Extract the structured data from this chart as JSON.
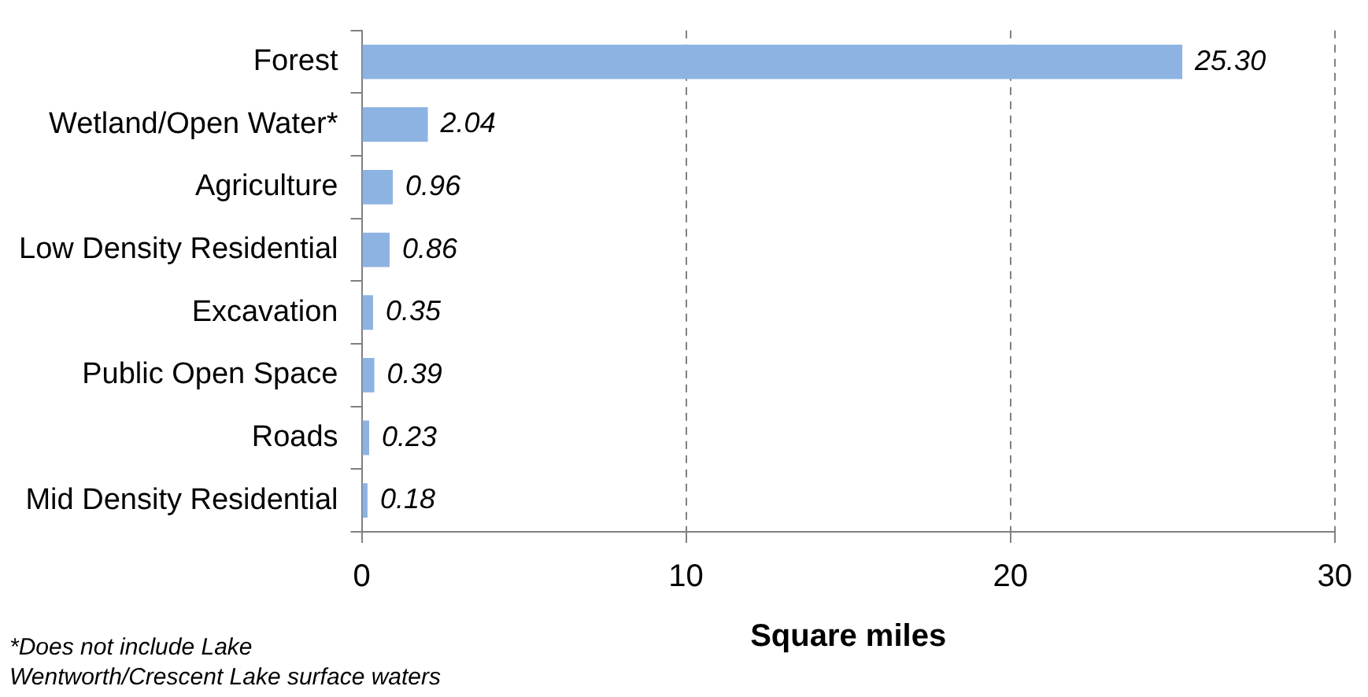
{
  "chart_data": {
    "type": "bar",
    "orientation": "horizontal",
    "categories": [
      "Forest",
      "Wetland/Open Water*",
      "Agriculture",
      "Low Density Residential",
      "Excavation",
      "Public Open Space",
      "Roads",
      "Mid Density Residential"
    ],
    "values": [
      25.3,
      2.04,
      0.96,
      0.86,
      0.35,
      0.39,
      0.23,
      0.18
    ],
    "value_labels": [
      "25.30",
      "2.04",
      "0.96",
      "0.86",
      "0.35",
      "0.39",
      "0.23",
      "0.18"
    ],
    "color": "#8db3e2",
    "xlim": [
      0,
      30
    ],
    "xticks": [
      0,
      10,
      20,
      30
    ],
    "grid": "x",
    "xlabel": "Square miles",
    "annotations": [
      "*Does not include Lake Wentworth/Crescent Lake surface waters"
    ]
  }
}
